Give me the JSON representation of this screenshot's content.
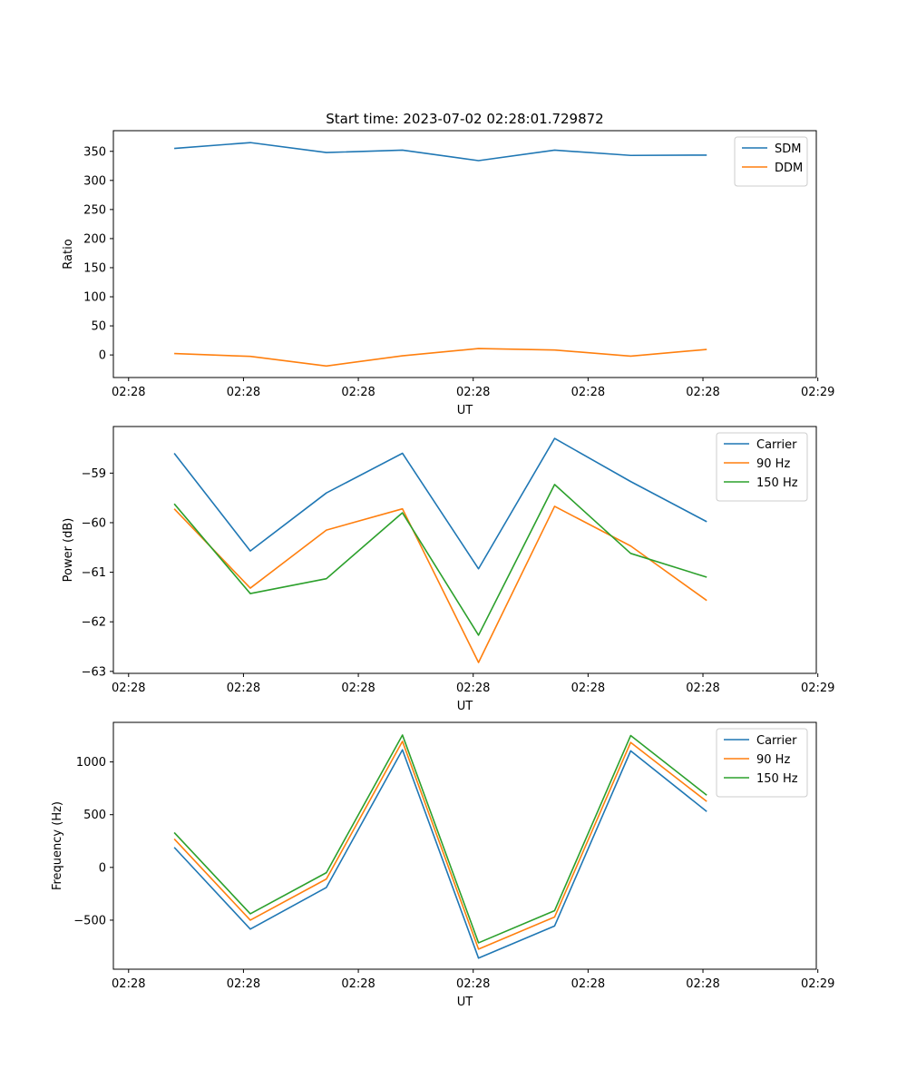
{
  "figure_title": "Start time: 2023-07-02 02:28:01.729872",
  "chart_data": [
    {
      "type": "line",
      "title": "Start time: 2023-07-02 02:28:01.729872",
      "xlabel": "UT",
      "ylabel": "Ratio",
      "x": [
        1,
        2,
        3,
        4,
        5,
        6,
        7,
        8
      ],
      "xlim": [
        0.2,
        9.44
      ],
      "x_ticks": [
        0.4,
        1.91,
        3.42,
        4.93,
        6.44,
        7.95,
        9.46
      ],
      "x_tick_labels": [
        "02:28",
        "02:28",
        "02:28",
        "02:28",
        "02:28",
        "02:28",
        "02:29"
      ],
      "ylim": [
        -38.8,
        385.5
      ],
      "y_ticks": [
        0,
        50,
        100,
        150,
        200,
        250,
        300,
        350
      ],
      "y_tick_labels": [
        "0",
        "50",
        "100",
        "150",
        "200",
        "250",
        "300",
        "350"
      ],
      "legend": "top-right",
      "series": [
        {
          "name": "SDM",
          "color": "#1f77b4",
          "values": [
            355,
            365,
            348,
            352,
            334,
            352,
            343,
            343.5
          ]
        },
        {
          "name": "DDM",
          "color": "#ff7f0e",
          "values": [
            2.5,
            -2.5,
            -19,
            -1.5,
            11,
            8.5,
            -2,
            9.5
          ]
        }
      ]
    },
    {
      "type": "line",
      "title": "",
      "xlabel": "UT",
      "ylabel": "Power (dB)",
      "x": [
        1,
        2,
        3,
        4,
        5,
        6,
        7,
        8
      ],
      "xlim": [
        0.2,
        9.44
      ],
      "x_ticks": [
        0.4,
        1.91,
        3.42,
        4.93,
        6.44,
        7.95,
        9.46
      ],
      "x_tick_labels": [
        "02:28",
        "02:28",
        "02:28",
        "02:28",
        "02:28",
        "02:28",
        "02:29"
      ],
      "ylim": [
        -63.04,
        -58.06
      ],
      "y_ticks": [
        -63,
        -62,
        -61,
        -60,
        -59
      ],
      "y_tick_labels": [
        "−63",
        "−62",
        "−61",
        "−60",
        "−59"
      ],
      "legend": "top-right",
      "series": [
        {
          "name": "Carrier",
          "color": "#1f77b4",
          "values": [
            -58.6,
            -60.57,
            -59.4,
            -58.6,
            -60.93,
            -58.3,
            -59.17,
            -59.98
          ]
        },
        {
          "name": "90 Hz",
          "color": "#ff7f0e",
          "values": [
            -59.72,
            -61.32,
            -60.15,
            -59.72,
            -62.82,
            -59.67,
            -60.47,
            -61.57
          ]
        },
        {
          "name": "150 Hz",
          "color": "#2ca02c",
          "values": [
            -59.62,
            -61.43,
            -61.13,
            -59.8,
            -62.27,
            -59.23,
            -60.62,
            -61.1
          ]
        }
      ]
    },
    {
      "type": "line",
      "title": "",
      "xlabel": "UT",
      "ylabel": "Frequency (Hz)",
      "x": [
        1,
        2,
        3,
        4,
        5,
        6,
        7,
        8
      ],
      "xlim": [
        0.2,
        9.44
      ],
      "x_ticks": [
        0.4,
        1.91,
        3.42,
        4.93,
        6.44,
        7.95,
        9.46
      ],
      "x_tick_labels": [
        "02:28",
        "02:28",
        "02:28",
        "02:28",
        "02:28",
        "02:28",
        "02:29"
      ],
      "ylim": [
        -965,
        1375
      ],
      "y_ticks": [
        -500,
        0,
        500,
        1000
      ],
      "y_tick_labels": [
        "−500",
        "0",
        "500",
        "1000"
      ],
      "legend": "top-right",
      "series": [
        {
          "name": "Carrier",
          "color": "#1f77b4",
          "values": [
            190,
            -585,
            -190,
            1115,
            -860,
            -555,
            1105,
            530
          ]
        },
        {
          "name": "90 Hz",
          "color": "#ff7f0e",
          "values": [
            270,
            -500,
            -110,
            1195,
            -775,
            -470,
            1185,
            625
          ]
        },
        {
          "name": "150 Hz",
          "color": "#2ca02c",
          "values": [
            330,
            -440,
            -50,
            1255,
            -715,
            -410,
            1250,
            685
          ]
        }
      ]
    }
  ]
}
